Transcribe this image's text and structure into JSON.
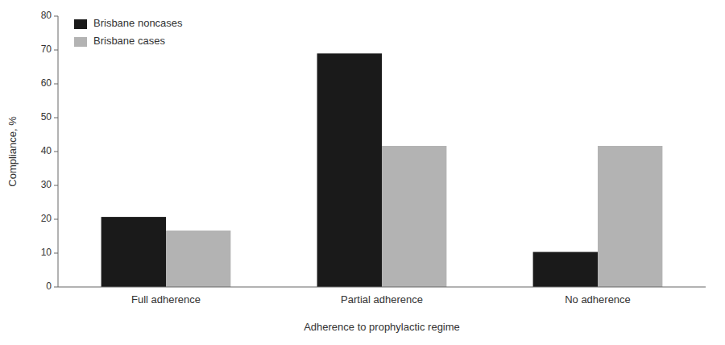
{
  "chart_data": {
    "type": "bar",
    "categories": [
      "Full adherence",
      "Partial adherence",
      "No adherence"
    ],
    "series": [
      {
        "name": "Brisbane noncases",
        "color": "#1a1a1a",
        "values": [
          20.69,
          68.97,
          10.34
        ]
      },
      {
        "name": "Brisbane cases",
        "color": "#b3b3b3",
        "values": [
          16.67,
          41.67,
          41.67
        ]
      }
    ],
    "xlabel": "Adherence to prophylactic regime",
    "ylabel": "Compliance, %",
    "ylim": [
      0,
      80
    ],
    "yticks": [
      0,
      10,
      20,
      30,
      40,
      50,
      60,
      70,
      80
    ],
    "grid": false,
    "legend": "top-left"
  }
}
